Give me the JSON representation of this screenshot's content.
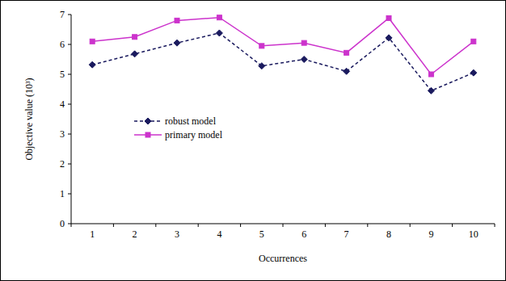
{
  "chart_data": {
    "type": "line",
    "y_label": "Objective value (10³)",
    "x_label": "Occurrences",
    "categories": [
      "1",
      "2",
      "3",
      "4",
      "5",
      "6",
      "7",
      "8",
      "9",
      "10"
    ],
    "series": [
      {
        "name": "robust model",
        "color": "#1a1a5e",
        "marker": "diamond",
        "line_style": "dashed",
        "values": [
          5.32,
          5.68,
          6.05,
          6.38,
          5.28,
          5.5,
          5.1,
          6.22,
          4.45,
          5.05
        ]
      },
      {
        "name": "primary model",
        "color": "#cc33cc",
        "marker": "square",
        "line_style": "solid",
        "values": [
          6.1,
          6.25,
          6.8,
          6.9,
          5.95,
          6.05,
          5.72,
          6.88,
          5.0,
          6.1
        ]
      }
    ],
    "ylim": [
      0,
      7
    ],
    "yticks": [
      0,
      1,
      2,
      3,
      4,
      5,
      6,
      7
    ],
    "grid": false
  }
}
